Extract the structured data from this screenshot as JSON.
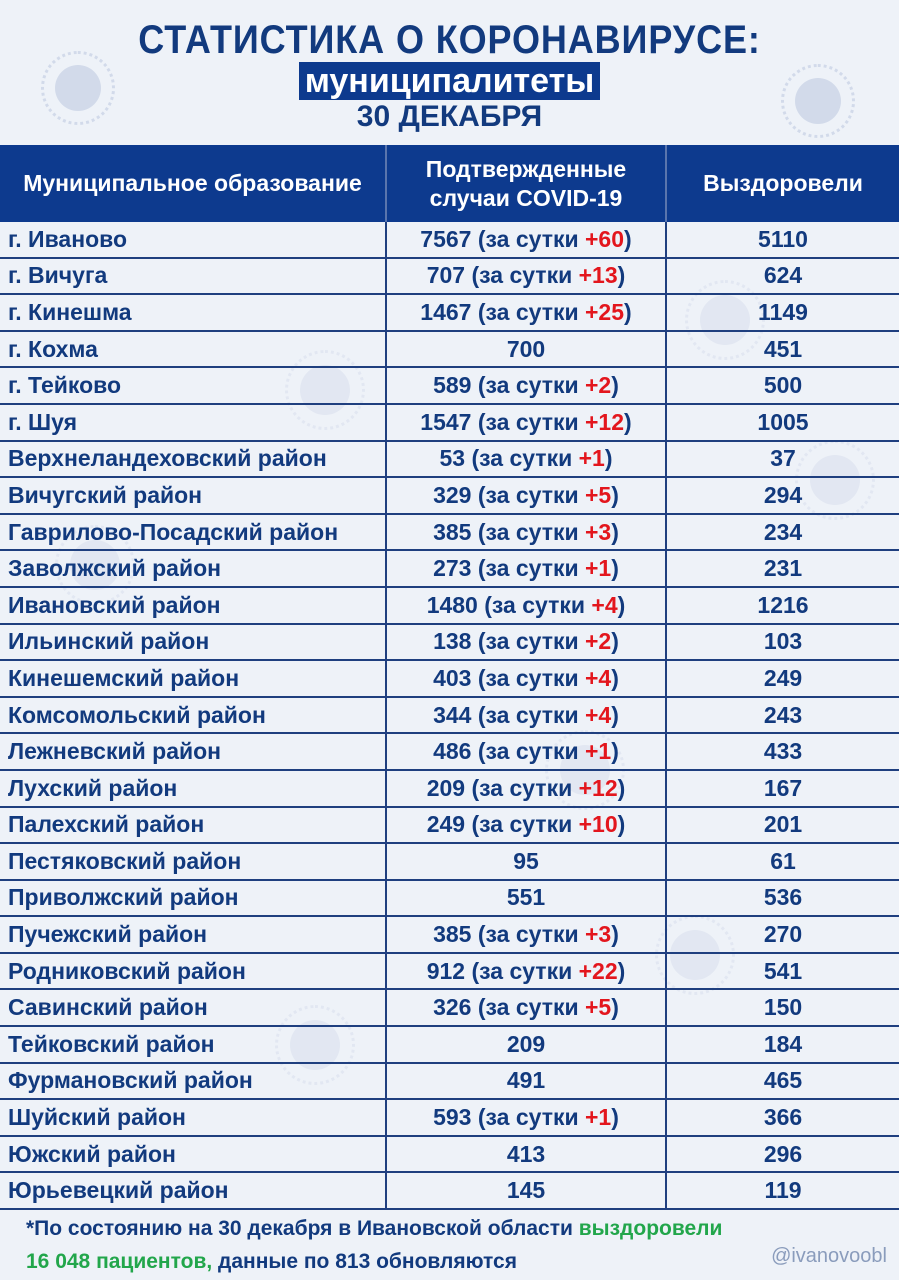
{
  "header": {
    "title": "СТАТИСТИКА О КОРОНАВИРУСЕ:",
    "subtitle": "муниципалитеты",
    "date": "30 ДЕКАБРЯ"
  },
  "table": {
    "columns": [
      "Муниципальное образование",
      "Подтвержденные случаи COVID-19",
      "Выздоровели"
    ],
    "delta_prefix": "(за сутки ",
    "delta_suffix": ")",
    "rows": [
      {
        "name": "г. Иваново",
        "cases": "7567",
        "delta": "+60",
        "recovered": "5110"
      },
      {
        "name": "г. Вичуга",
        "cases": "707",
        "delta": "+13",
        "recovered": "624"
      },
      {
        "name": "г. Кинешма",
        "cases": "1467",
        "delta": "+25",
        "recovered": "1149"
      },
      {
        "name": "г. Кохма",
        "cases": "700",
        "delta": null,
        "recovered": "451"
      },
      {
        "name": "г. Тейково",
        "cases": "589",
        "delta": "+2",
        "recovered": "500"
      },
      {
        "name": "г. Шуя",
        "cases": "1547",
        "delta": "+12",
        "recovered": "1005"
      },
      {
        "name": "Верхнеландеховский район",
        "cases": "53",
        "delta": "+1",
        "recovered": "37"
      },
      {
        "name": "Вичугский район",
        "cases": "329",
        "delta": "+5",
        "recovered": "294"
      },
      {
        "name": "Гаврилово-Посадский район",
        "cases": "385",
        "delta": "+3",
        "recovered": "234"
      },
      {
        "name": "Заволжский район",
        "cases": "273",
        "delta": "+1",
        "recovered": "231"
      },
      {
        "name": "Ивановский район",
        "cases": "1480",
        "delta": "+4",
        "recovered": "1216"
      },
      {
        "name": "Ильинский район",
        "cases": "138",
        "delta": "+2",
        "recovered": "103"
      },
      {
        "name": "Кинешемский район",
        "cases": "403",
        "delta": "+4",
        "recovered": "249"
      },
      {
        "name": "Комсомольский район",
        "cases": "344",
        "delta": "+4",
        "recovered": "243"
      },
      {
        "name": "Лежневский район",
        "cases": "486",
        "delta": "+1",
        "recovered": "433"
      },
      {
        "name": "Лухский район",
        "cases": "209",
        "delta": "+12",
        "recovered": "167"
      },
      {
        "name": "Палехский район",
        "cases": "249",
        "delta": "+10",
        "recovered": "201"
      },
      {
        "name": "Пестяковский район",
        "cases": "95",
        "delta": null,
        "recovered": "61"
      },
      {
        "name": "Приволжский район",
        "cases": "551",
        "delta": null,
        "recovered": "536"
      },
      {
        "name": "Пучежский район",
        "cases": "385",
        "delta": "+3",
        "recovered": "270"
      },
      {
        "name": "Родниковский район",
        "cases": "912",
        "delta": "+22",
        "recovered": "541"
      },
      {
        "name": "Савинский район",
        "cases": "326",
        "delta": "+5",
        "recovered": "150"
      },
      {
        "name": "Тейковский район",
        "cases": "209",
        "delta": null,
        "recovered": "184"
      },
      {
        "name": "Фурмановский район",
        "cases": "491",
        "delta": null,
        "recovered": "465"
      },
      {
        "name": "Шуйский район",
        "cases": "593",
        "delta": "+1",
        "recovered": "366"
      },
      {
        "name": "Южский район",
        "cases": "413",
        "delta": null,
        "recovered": "296"
      },
      {
        "name": "Юрьевецкий район",
        "cases": "145",
        "delta": null,
        "recovered": "119"
      }
    ]
  },
  "footer": {
    "line1_text": "*По состоянию на 30 декабря в Ивановской области ",
    "line1_green": "выздоровели",
    "line2_green": "16 048 пациентов,",
    "line2_text": " данные по 813 обновляются",
    "handle": "@ivanovoobl"
  },
  "colors": {
    "header_bg": "#0d3a8e",
    "text": "#123a7e",
    "delta": "#e3161d",
    "highlight": "#22a64b",
    "background": "#eef2f8"
  },
  "decorations": [
    "virus-icon"
  ]
}
